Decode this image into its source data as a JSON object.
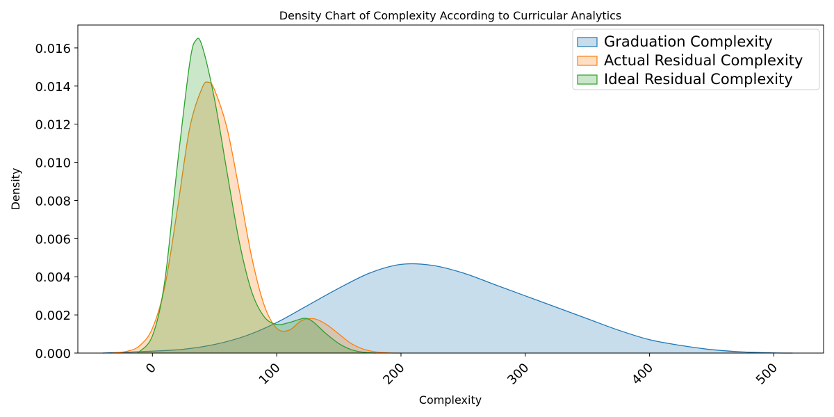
{
  "chart_data": {
    "type": "area",
    "title": "Density Chart of Complexity According to Curricular Analytics",
    "xlabel": "Complexity",
    "ylabel": "Density",
    "xlim": [
      -60,
      540
    ],
    "ylim": [
      0,
      0.0172
    ],
    "xticks": [
      0,
      100,
      200,
      300,
      400,
      500
    ],
    "xtick_labels": [
      "0",
      "100",
      "200",
      "300",
      "400",
      "500"
    ],
    "yticks": [
      0.0,
      0.002,
      0.004,
      0.006,
      0.008,
      0.01,
      0.012,
      0.014,
      0.016
    ],
    "ytick_labels": [
      "0.000",
      "0.002",
      "0.004",
      "0.006",
      "0.008",
      "0.010",
      "0.012",
      "0.014",
      "0.016"
    ],
    "legend_position": "top-right",
    "grid": false,
    "series": [
      {
        "name": "Graduation Complexity",
        "color": "#1f77b4",
        "x": [
          -40,
          0,
          25,
          50,
          75,
          100,
          125,
          150,
          175,
          200,
          225,
          250,
          275,
          300,
          325,
          350,
          375,
          400,
          425,
          450,
          475,
          500,
          515
        ],
        "y": [
          0.0,
          0.0001,
          0.0002,
          0.00045,
          0.0009,
          0.0016,
          0.0025,
          0.0034,
          0.0042,
          0.00465,
          0.0046,
          0.0042,
          0.0036,
          0.003,
          0.0024,
          0.0018,
          0.0012,
          0.0007,
          0.0004,
          0.00018,
          6e-05,
          1e-05,
          0.0
        ]
      },
      {
        "name": "Actual Residual Complexity",
        "color": "#ff7f0e",
        "x": [
          -33,
          -20,
          -10,
          0,
          10,
          20,
          30,
          40,
          45,
          50,
          60,
          70,
          80,
          90,
          100,
          110,
          120,
          130,
          140,
          150,
          160,
          170,
          180,
          190,
          200
        ],
        "y": [
          0.0,
          0.0001,
          0.0004,
          0.0013,
          0.0035,
          0.0075,
          0.0118,
          0.0139,
          0.0142,
          0.0138,
          0.0118,
          0.0085,
          0.005,
          0.0025,
          0.0013,
          0.0012,
          0.0017,
          0.0018,
          0.0015,
          0.001,
          0.0005,
          0.0002,
          6e-05,
          1e-05,
          0.0
        ]
      },
      {
        "name": "Ideal Residual Complexity",
        "color": "#2ca02c",
        "x": [
          -12,
          0,
          10,
          20,
          30,
          35,
          40,
          50,
          60,
          70,
          80,
          90,
          100,
          110,
          120,
          125,
          130,
          140,
          150,
          160,
          170,
          180
        ],
        "y": [
          0.0,
          0.0009,
          0.0038,
          0.0098,
          0.0152,
          0.0164,
          0.0161,
          0.0133,
          0.0095,
          0.0058,
          0.0032,
          0.0019,
          0.0015,
          0.0016,
          0.0018,
          0.0018,
          0.0016,
          0.001,
          0.0005,
          0.00018,
          4e-05,
          0.0
        ]
      }
    ]
  }
}
